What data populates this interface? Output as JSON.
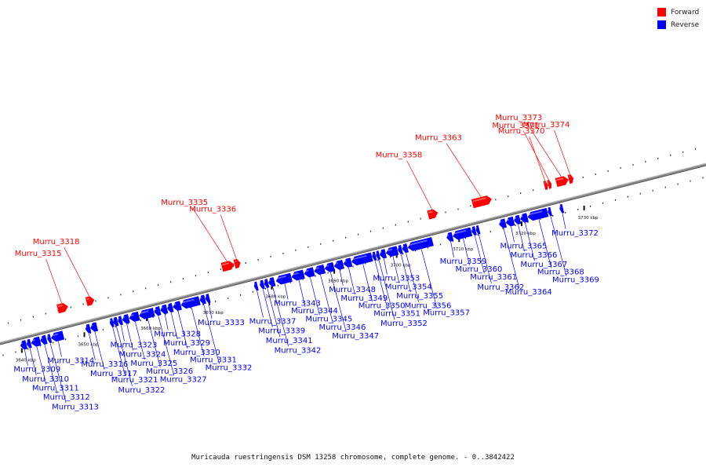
{
  "title": "Muricauda ruestringensis DSM 13258 chromosome, complete genome. - 0..3842422",
  "legend": {
    "forward": {
      "label": "Forward",
      "color": "#ff0000"
    },
    "reverse": {
      "label": "Reverse",
      "color": "#0000ff"
    }
  },
  "axis": {
    "start_kbp": 3637,
    "end_kbp": 3750,
    "line_color": "#888888",
    "ticks": [
      {
        "kbp": 3640,
        "label": "3640 kbp"
      },
      {
        "kbp": 3650,
        "label": "3650 kbp"
      },
      {
        "kbp": 3660,
        "label": "3660 kbp"
      },
      {
        "kbp": 3670,
        "label": "3670 kbp"
      },
      {
        "kbp": 3680,
        "label": "3680 kbp"
      },
      {
        "kbp": 3690,
        "label": "3690 kbp"
      },
      {
        "kbp": 3700,
        "label": "3700 kbp"
      },
      {
        "kbp": 3710,
        "label": "3710 kbp"
      },
      {
        "kbp": 3720,
        "label": "3720 kbp"
      },
      {
        "kbp": 3730,
        "label": "3730 kbp"
      }
    ]
  },
  "genes": [
    {
      "name": "Murru_3309",
      "strand": "reverse",
      "start_kbp": 3640.0,
      "end_kbp": 3640.9
    },
    {
      "name": "Murru_3310",
      "strand": "reverse",
      "start_kbp": 3641.0,
      "end_kbp": 3641.6
    },
    {
      "name": "Murru_3311",
      "strand": "reverse",
      "start_kbp": 3641.7,
      "end_kbp": 3643.1
    },
    {
      "name": "Murru_3312",
      "strand": "reverse",
      "start_kbp": 3643.2,
      "end_kbp": 3644.1
    },
    {
      "name": "Murru_3313",
      "strand": "reverse",
      "start_kbp": 3644.3,
      "end_kbp": 3644.8
    },
    {
      "name": "Murru_3314",
      "strand": "reverse",
      "start_kbp": 3644.9,
      "end_kbp": 3646.8
    },
    {
      "name": "Murru_3315",
      "strand": "forward",
      "start_kbp": 3647.0,
      "end_kbp": 3648.6
    },
    {
      "name": "Murru_3316",
      "strand": "reverse",
      "start_kbp": 3650.4,
      "end_kbp": 3651.1
    },
    {
      "name": "Murru_3317",
      "strand": "reverse",
      "start_kbp": 3651.2,
      "end_kbp": 3652.2
    },
    {
      "name": "Murru_3318",
      "strand": "forward",
      "start_kbp": 3651.6,
      "end_kbp": 3652.8
    },
    {
      "name": "Murru_3321",
      "strand": "reverse",
      "start_kbp": 3654.3,
      "end_kbp": 3654.7
    },
    {
      "name": "Murru_3322",
      "strand": "reverse",
      "start_kbp": 3654.8,
      "end_kbp": 3655.5
    },
    {
      "name": "Murru_3323",
      "strand": "reverse",
      "start_kbp": 3655.6,
      "end_kbp": 3656.2
    },
    {
      "name": "Murru_3324",
      "strand": "reverse",
      "start_kbp": 3656.3,
      "end_kbp": 3657.3
    },
    {
      "name": "Murru_3325",
      "strand": "reverse",
      "start_kbp": 3657.4,
      "end_kbp": 3658.9
    },
    {
      "name": "Murru_3326",
      "strand": "reverse",
      "start_kbp": 3659.0,
      "end_kbp": 3661.3
    },
    {
      "name": "Murru_3327",
      "strand": "reverse",
      "start_kbp": 3661.4,
      "end_kbp": 3662.3
    },
    {
      "name": "Murru_3328",
      "strand": "reverse",
      "start_kbp": 3662.4,
      "end_kbp": 3663.4
    },
    {
      "name": "Murru_3329",
      "strand": "reverse",
      "start_kbp": 3663.5,
      "end_kbp": 3664.3
    },
    {
      "name": "Murru_3330",
      "strand": "reverse",
      "start_kbp": 3664.4,
      "end_kbp": 3665.6
    },
    {
      "name": "Murru_3331",
      "strand": "reverse",
      "start_kbp": 3665.7,
      "end_kbp": 3668.6
    },
    {
      "name": "Murru_3332",
      "strand": "reverse",
      "start_kbp": 3668.7,
      "end_kbp": 3669.5
    },
    {
      "name": "Murru_3333",
      "strand": "reverse",
      "start_kbp": 3669.6,
      "end_kbp": 3670.2
    },
    {
      "name": "Murru_3335",
      "strand": "forward",
      "start_kbp": 3673.3,
      "end_kbp": 3675.2
    },
    {
      "name": "Murru_3336",
      "strand": "forward",
      "start_kbp": 3675.3,
      "end_kbp": 3676.2
    },
    {
      "name": "Murru_3337",
      "strand": "reverse",
      "start_kbp": 3677.4,
      "end_kbp": 3677.8
    },
    {
      "name": "Murru_3339",
      "strand": "reverse",
      "start_kbp": 3678.3,
      "end_kbp": 3678.9
    },
    {
      "name": "Murru_3341",
      "strand": "reverse",
      "start_kbp": 3679.0,
      "end_kbp": 3679.6
    },
    {
      "name": "Murru_3342",
      "strand": "reverse",
      "start_kbp": 3679.7,
      "end_kbp": 3680.6
    },
    {
      "name": "Murru_3343",
      "strand": "reverse",
      "start_kbp": 3680.9,
      "end_kbp": 3683.3
    },
    {
      "name": "Murru_3344",
      "strand": "reverse",
      "start_kbp": 3683.4,
      "end_kbp": 3685.3
    },
    {
      "name": "Murru_3345",
      "strand": "reverse",
      "start_kbp": 3685.4,
      "end_kbp": 3686.9
    },
    {
      "name": "Murru_3346",
      "strand": "reverse",
      "start_kbp": 3687.0,
      "end_kbp": 3688.6
    },
    {
      "name": "Murru_3347",
      "strand": "reverse",
      "start_kbp": 3688.7,
      "end_kbp": 3690.1
    },
    {
      "name": "Murru_3348",
      "strand": "reverse",
      "start_kbp": 3690.2,
      "end_kbp": 3691.6
    },
    {
      "name": "Murru_3349",
      "strand": "reverse",
      "start_kbp": 3691.7,
      "end_kbp": 3692.9
    },
    {
      "name": "Murru_3350",
      "strand": "reverse",
      "start_kbp": 3693.0,
      "end_kbp": 3696.2
    },
    {
      "name": "Murru_3351",
      "strand": "reverse",
      "start_kbp": 3696.3,
      "end_kbp": 3696.8
    },
    {
      "name": "Murru_3352",
      "strand": "reverse",
      "start_kbp": 3696.9,
      "end_kbp": 3697.4
    },
    {
      "name": "Murru_3353",
      "strand": "reverse",
      "start_kbp": 3697.5,
      "end_kbp": 3698.4
    },
    {
      "name": "Murru_3354",
      "strand": "reverse",
      "start_kbp": 3698.5,
      "end_kbp": 3700.3
    },
    {
      "name": "Murru_3355",
      "strand": "reverse",
      "start_kbp": 3700.4,
      "end_kbp": 3701.0
    },
    {
      "name": "Murru_3356",
      "strand": "reverse",
      "start_kbp": 3701.1,
      "end_kbp": 3701.9
    },
    {
      "name": "Murru_3357",
      "strand": "reverse",
      "start_kbp": 3702.0,
      "end_kbp": 3705.9
    },
    {
      "name": "Murru_3358",
      "strand": "forward",
      "start_kbp": 3706.3,
      "end_kbp": 3707.8
    },
    {
      "name": "Murru_3359",
      "strand": "reverse",
      "start_kbp": 3708.2,
      "end_kbp": 3709.1
    },
    {
      "name": "Murru_3360",
      "strand": "reverse",
      "start_kbp": 3709.2,
      "end_kbp": 3712.1
    },
    {
      "name": "Murru_3361",
      "strand": "reverse",
      "start_kbp": 3712.2,
      "end_kbp": 3712.8
    },
    {
      "name": "Murru_3362",
      "strand": "reverse",
      "start_kbp": 3712.9,
      "end_kbp": 3713.3
    },
    {
      "name": "Murru_3363",
      "strand": "forward",
      "start_kbp": 3713.4,
      "end_kbp": 3716.4
    },
    {
      "name": "Murru_3364",
      "strand": "reverse",
      "start_kbp": 3716.6,
      "end_kbp": 3717.6
    },
    {
      "name": "Murru_3365",
      "strand": "reverse",
      "start_kbp": 3717.7,
      "end_kbp": 3718.9
    },
    {
      "name": "Murru_3366",
      "strand": "reverse",
      "start_kbp": 3719.0,
      "end_kbp": 3719.9
    },
    {
      "name": "Murru_3367",
      "strand": "reverse",
      "start_kbp": 3720.0,
      "end_kbp": 3721.1
    },
    {
      "name": "Murru_3368",
      "strand": "reverse",
      "start_kbp": 3721.2,
      "end_kbp": 3724.3
    },
    {
      "name": "Murru_3369",
      "strand": "reverse",
      "start_kbp": 3724.4,
      "end_kbp": 3724.8
    },
    {
      "name": "Murru_3370",
      "strand": "forward",
      "start_kbp": 3724.9,
      "end_kbp": 3725.4
    },
    {
      "name": "Murru_3371",
      "strand": "forward",
      "start_kbp": 3725.5,
      "end_kbp": 3725.9
    },
    {
      "name": "Murru_3372",
      "strand": "reverse",
      "start_kbp": 3726.3,
      "end_kbp": 3726.6
    },
    {
      "name": "Murru_3373",
      "strand": "forward",
      "start_kbp": 3726.8,
      "end_kbp": 3728.7
    },
    {
      "name": "Murru_3374",
      "strand": "forward",
      "start_kbp": 3728.8,
      "end_kbp": 3729.5
    }
  ]
}
